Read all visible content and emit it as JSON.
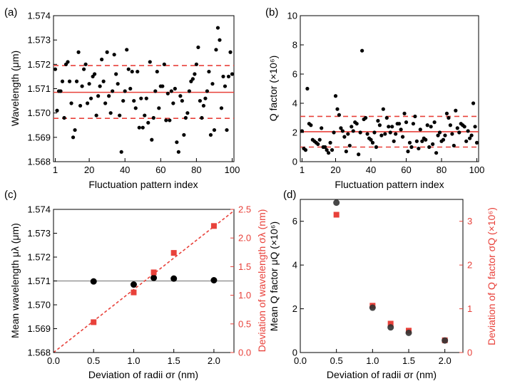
{
  "colors": {
    "black": "#000000",
    "red": "#e8413a",
    "dashed": "#e8413a",
    "gray_marker": "#333333"
  },
  "chart_data": [
    {
      "panel_label": "(a)",
      "type": "scatter",
      "xlabel": "Fluctuation pattern index",
      "ylabel": "Wavelength (μm)",
      "xlim": [
        0,
        101
      ],
      "ylim": [
        1.568,
        1.574
      ],
      "xticks": [
        1,
        20,
        40,
        60,
        80,
        100
      ],
      "yticks": [
        "1.568",
        "1.569",
        "1.570",
        "1.571",
        "1.572",
        "1.573",
        "1.574"
      ],
      "mean_line": 1.57085,
      "dev_lines": [
        1.57195,
        1.56978
      ],
      "series": [
        {
          "values": [
            1.5718,
            1.5701,
            1.5709,
            1.5709,
            1.5713,
            1.5698,
            1.572,
            1.5721,
            1.5713,
            1.5704,
            1.569,
            1.5693,
            1.5713,
            1.5725,
            1.5703,
            1.5711,
            1.5718,
            1.572,
            1.5704,
            1.5712,
            1.5706,
            1.5715,
            1.5716,
            1.5699,
            1.5707,
            1.5711,
            1.5722,
            1.5713,
            1.5704,
            1.5725,
            1.5707,
            1.57,
            1.5709,
            1.5724,
            1.5716,
            1.5712,
            1.5699,
            1.5684,
            1.5705,
            1.5709,
            1.5726,
            1.5718,
            1.571,
            1.5717,
            1.5705,
            1.5702,
            1.5717,
            1.5694,
            1.5706,
            1.5694,
            1.5699,
            1.5706,
            1.5696,
            1.5721,
            1.5689,
            1.5698,
            1.5709,
            1.5717,
            1.5702,
            1.5711,
            1.5711,
            1.572,
            1.5697,
            1.5708,
            1.5697,
            1.5709,
            1.5704,
            1.571,
            1.5688,
            1.5684,
            1.5707,
            1.5705,
            1.5691,
            1.5698,
            1.57,
            1.5709,
            1.5713,
            1.5714,
            1.5716,
            1.572,
            1.5727,
            1.5705,
            1.5698,
            1.5703,
            1.5706,
            1.5709,
            1.5717,
            1.5691,
            1.5712,
            1.5693,
            1.5726,
            1.5735,
            1.573,
            1.5702,
            1.5715,
            1.5711,
            1.5693,
            1.5715,
            1.5725,
            1.5716
          ]
        }
      ]
    },
    {
      "panel_label": "(b)",
      "type": "scatter",
      "xlabel": "Fluctuation pattern index",
      "ylabel": "Q factor (×10⁶)",
      "xlim": [
        0,
        101
      ],
      "ylim": [
        0,
        10
      ],
      "xticks": [
        1,
        20,
        40,
        60,
        80,
        100
      ],
      "yticks": [
        "0",
        "2",
        "4",
        "6",
        "8",
        "10"
      ],
      "mean_line": 2.05,
      "dev_lines": [
        3.1,
        1.0
      ],
      "series": [
        {
          "values": [
            2.1,
            0.9,
            0.8,
            5.0,
            2.6,
            2.5,
            1.5,
            1.4,
            1.3,
            1.2,
            1.5,
            2.3,
            1.0,
            1.0,
            0.8,
            0.6,
            1.3,
            0.8,
            2.0,
            4.5,
            3.6,
            3.2,
            2.3,
            2.1,
            1.7,
            0.7,
            1.9,
            1.1,
            2.4,
            2.1,
            2.7,
            2.6,
            0.5,
            2.0,
            7.6,
            2.9,
            3.0,
            1.9,
            1.6,
            1.5,
            1.3,
            2.0,
            1.0,
            2.8,
            2.5,
            1.8,
            3.6,
            1.9,
            3.0,
            2.4,
            2.0,
            2.4,
            1.4,
            1.9,
            2.6,
            2.6,
            2.2,
            1.7,
            3.3,
            2.7,
            0.7,
            1.3,
            1.0,
            2.6,
            3.1,
            1.4,
            0.9,
            2.2,
            1.4,
            1.6,
            1.5,
            2.5,
            1.0,
            2.4,
            1.2,
            2.7,
            0.6,
            1.8,
            2.0,
            1.4,
            1.5,
            1.8,
            3.3,
            3.0,
            2.5,
            1.9,
            1.1,
            3.5,
            2.3,
            2.0,
            2.6,
            2.5,
            2.4,
            1.4,
            2.1,
            1.6,
            1.8,
            4.0,
            2.4,
            1.3
          ]
        }
      ]
    },
    {
      "panel_label": "(c)",
      "type": "scatter",
      "xlabel": "Deviation of radii σr (nm)",
      "ylabel_left": "Mean wavelength μλ (μm)",
      "ylabel_right": "Deviation of wavelength σλ (nm)",
      "xlim": [
        0,
        2.25
      ],
      "ylim_left": [
        1.568,
        1.574
      ],
      "ylim_right": [
        0,
        2.5
      ],
      "xticks": [
        "0.0",
        "0.5",
        "1.0",
        "1.5",
        "2.0"
      ],
      "yticks_left": [
        "1.568",
        "1.569",
        "1.570",
        "1.571",
        "1.572",
        "1.573",
        "1.574"
      ],
      "yticks_right": [
        "0.0",
        "0.5",
        "1.0",
        "1.5",
        "2.0",
        "2.5"
      ],
      "x": [
        0.5,
        1.0,
        1.25,
        1.5,
        2.0
      ],
      "series": [
        {
          "axis": "left",
          "values": [
            1.57098,
            1.57085,
            1.57113,
            1.5711,
            1.57103
          ]
        },
        {
          "axis": "right",
          "values": [
            0.53,
            1.05,
            1.4,
            1.74,
            2.21
          ]
        }
      ],
      "mean_line": 1.571,
      "fit_line": {
        "slope": 1.1,
        "intercept": 0
      }
    },
    {
      "panel_label": "(d)",
      "type": "scatter",
      "xlabel": "Deviation of radii σr (nm)",
      "ylabel_left": "Mean Q factor μQ (×10⁶)",
      "ylabel_right": "Deviation of Q factor σQ (×10⁶)",
      "xlim": [
        0,
        2.25
      ],
      "ylim_left": [
        0,
        7
      ],
      "ylim_right": [
        0,
        3.5
      ],
      "xticks": [
        "0.0",
        "0.5",
        "1.0",
        "1.5",
        "2.0"
      ],
      "yticks_left": [
        "0",
        "2",
        "4",
        "6"
      ],
      "yticks_right": [
        "0",
        "1",
        "2",
        "3"
      ],
      "x": [
        0.5,
        1.0,
        1.25,
        1.5,
        2.0
      ],
      "series": [
        {
          "axis": "left",
          "values": [
            6.85,
            2.05,
            1.15,
            0.9,
            0.55
          ]
        },
        {
          "axis": "right",
          "values": [
            3.15,
            1.07,
            0.66,
            0.5,
            0.28
          ]
        }
      ]
    }
  ]
}
